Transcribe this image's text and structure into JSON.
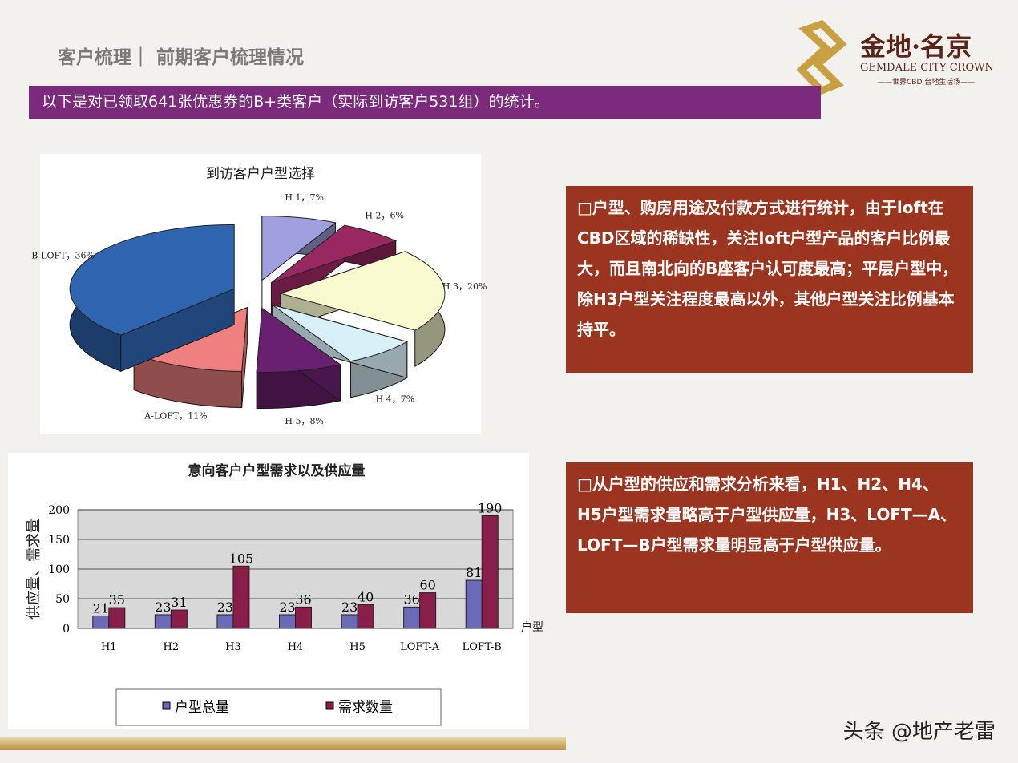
{
  "header": {
    "title": "客户梳理｜ 前期客户梳理情况",
    "banner": "以下是对已领取641张优惠券的B+类客户（实际到访客户531组）的统计。"
  },
  "logo": {
    "cn": "金地·名京",
    "en": "GEMDALE CITY CROWN",
    "sub": "——世界CBD 台地生活场——"
  },
  "text_boxes": [
    "□户型、购房用途及付款方式进行统计，由于loft在CBD区域的稀缺性，关注loft户型产品的客户比例最大，而且南北向的B座客户认可度最高；平层户型中，除H3户型关注程度最高以外，其他户型关注比例基本持平。",
    "□从户型的供应和需求分析来看，H1、H2、H4、H5户型需求量略高于户型供应量，H3、LOFT—A、LOFT—B户型需求量明显高于户型供应量。"
  ],
  "watermark": "头条 @地产老雷",
  "chart_data": [
    {
      "type": "pie",
      "title": "到访客户户型选择",
      "slices": [
        {
          "label": "H 1，7%",
          "name": "H1",
          "value": 7,
          "color": "#a0a0e0"
        },
        {
          "label": "H 2，6%",
          "name": "H2",
          "value": 6,
          "color": "#9a2860"
        },
        {
          "label": "H 3，20%",
          "name": "H3",
          "value": 20,
          "color": "#fafad0"
        },
        {
          "label": "H 4，7%",
          "name": "H4",
          "value": 7,
          "color": "#d8f0f8"
        },
        {
          "label": "H 5，8%",
          "name": "H5",
          "value": 8,
          "color": "#6a2070"
        },
        {
          "label": "A-LOFT，11%",
          "name": "A-LOFT",
          "value": 11,
          "color": "#f08080"
        },
        {
          "label": "B-LOFT，36%",
          "name": "B-LOFT",
          "value": 36,
          "color": "#2f64b0"
        }
      ]
    },
    {
      "type": "bar",
      "title": "意向客户户型需求以及供应量",
      "ylabel": "供应量、需求量",
      "xlabel": "户型",
      "ylim": [
        0,
        200
      ],
      "yticks": [
        0,
        50,
        100,
        150,
        200
      ],
      "categories": [
        "H1",
        "H2",
        "H3",
        "H4",
        "H5",
        "LOFT-A",
        "LOFT-B"
      ],
      "series": [
        {
          "name": "户型总量",
          "values": [
            21,
            23,
            23,
            23,
            23,
            36,
            81
          ],
          "color": "#6a6ab8"
        },
        {
          "name": "需求数量",
          "values": [
            35,
            31,
            105,
            36,
            40,
            60,
            190
          ],
          "color": "#8a1e4a"
        }
      ],
      "legend": "bottom",
      "grid": true
    }
  ]
}
